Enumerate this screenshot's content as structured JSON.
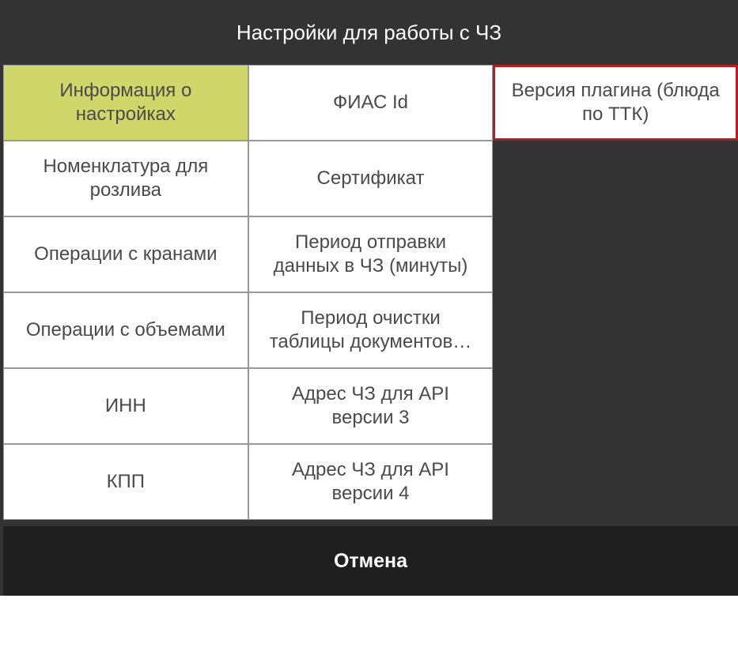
{
  "title": "Настройки для работы с ЧЗ",
  "grid": {
    "rows": 6,
    "cols": 3,
    "cells": [
      {
        "label": "Информация о настройках",
        "state": "selected"
      },
      {
        "label": "ФИАС Id",
        "state": "normal"
      },
      {
        "label": "Версия плагина (блюда по ТТК)",
        "state": "highlighted"
      },
      {
        "label": "Номенклатура для розлива",
        "state": "normal"
      },
      {
        "label": "Сертификат",
        "state": "normal"
      },
      {
        "label": "",
        "state": "empty"
      },
      {
        "label": "Операции с кранами",
        "state": "normal"
      },
      {
        "label": "Период отправки данных в ЧЗ (минуты)",
        "state": "normal"
      },
      {
        "label": "",
        "state": "empty"
      },
      {
        "label": "Операции с объемами",
        "state": "normal"
      },
      {
        "label": "Период очистки таблицы документов…",
        "state": "normal"
      },
      {
        "label": "",
        "state": "empty"
      },
      {
        "label": "ИНН",
        "state": "normal"
      },
      {
        "label": "Адрес ЧЗ для API версии 3",
        "state": "normal"
      },
      {
        "label": "",
        "state": "empty"
      },
      {
        "label": "КПП",
        "state": "normal"
      },
      {
        "label": "Адрес ЧЗ для API версии 4",
        "state": "normal"
      },
      {
        "label": "",
        "state": "empty"
      }
    ]
  },
  "footer": {
    "cancel_label": "Отмена"
  },
  "colors": {
    "window_bg": "#333333",
    "cell_bg": "#ffffff",
    "cell_border": "#999999",
    "cell_text": "#4a4a4a",
    "selected_bg": "#cfd76a",
    "highlight_border": "#b91c1c",
    "footer_bg": "#1f1f1f",
    "footer_text": "#ffffff"
  }
}
